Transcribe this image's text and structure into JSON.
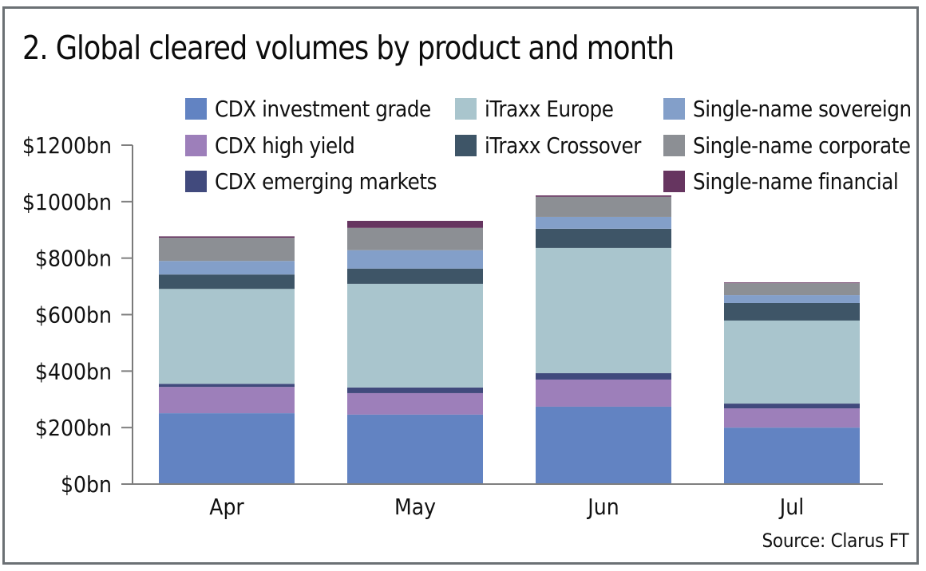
{
  "chart_data": {
    "type": "bar",
    "stacked": true,
    "title": "2. Global cleared volumes by product and month",
    "xlabel": "",
    "ylabel": "",
    "categories": [
      "Apr",
      "May",
      "Jun",
      "Jul"
    ],
    "ylim": [
      0,
      1200
    ],
    "yticks": [
      0,
      200,
      400,
      600,
      800,
      1000,
      1200
    ],
    "ytick_labels": [
      "$0bn",
      "$200bn",
      "$400bn",
      "$600bn",
      "$800bn",
      "$1000bn",
      "$1200bn"
    ],
    "grid": false,
    "legend_position": "top",
    "series": [
      {
        "name": "CDX investment grade",
        "color": "#6283c2",
        "values": [
          251,
          246,
          274,
          200
        ]
      },
      {
        "name": "CDX high yield",
        "color": "#9d7fba",
        "values": [
          93,
          76,
          96,
          68
        ]
      },
      {
        "name": "CDX emerging markets",
        "color": "#414a7d",
        "values": [
          11,
          20,
          23,
          17
        ]
      },
      {
        "name": "iTraxx Europe",
        "color": "#a9c5cd",
        "values": [
          336,
          367,
          443,
          294
        ]
      },
      {
        "name": "iTraxx Crossover",
        "color": "#3e5567",
        "values": [
          51,
          54,
          68,
          62
        ]
      },
      {
        "name": "Single-name sovereign",
        "color": "#839fc9",
        "values": [
          48,
          65,
          42,
          28
        ]
      },
      {
        "name": "Single-name corporate",
        "color": "#8c8f94",
        "values": [
          82,
          79,
          71,
          42
        ]
      },
      {
        "name": "Single-name financial",
        "color": "#663560",
        "values": [
          5,
          25,
          5,
          3
        ]
      }
    ],
    "source": "Source: Clarus FT"
  },
  "legend_layout": [
    [
      "CDX investment grade",
      "iTraxx Europe",
      "Single-name sovereign"
    ],
    [
      "CDX high yield",
      "iTraxx Crossover",
      "Single-name corporate"
    ],
    [
      "CDX emerging markets",
      null,
      "Single-name financial"
    ]
  ]
}
